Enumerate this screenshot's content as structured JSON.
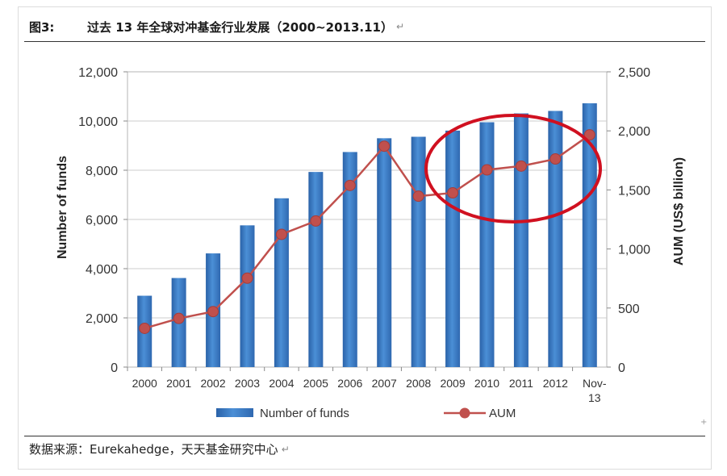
{
  "figure": {
    "label": "图3:",
    "title": "过去 13 年全球对冲基金行业发展（2000~2013.11）",
    "return_mark": "↵",
    "source": "数据来源：Eurekahedge，天天基金研究中心",
    "corner_mark": "+"
  },
  "chart_data": {
    "type": "bar",
    "categories": [
      "2000",
      "2001",
      "2002",
      "2003",
      "2004",
      "2005",
      "2006",
      "2007",
      "2008",
      "2009",
      "2010",
      "2011",
      "2012",
      "Nov-13"
    ],
    "series": [
      {
        "name": "Number of funds",
        "type": "bar",
        "axis": "left",
        "values": [
          2900,
          3620,
          4620,
          5760,
          6860,
          7930,
          8740,
          9300,
          9360,
          9610,
          9950,
          10310,
          10410,
          10720
        ]
      },
      {
        "name": "AUM",
        "type": "line",
        "axis": "right",
        "values": [
          328,
          412,
          470,
          753,
          1124,
          1237,
          1538,
          1870,
          1447,
          1475,
          1670,
          1702,
          1762,
          1966
        ]
      }
    ],
    "xlabel": "",
    "ylabel": "Number of funds",
    "y2label": "AUM (US$ billion)",
    "ylim": [
      0,
      12000
    ],
    "y2lim": [
      0,
      2500
    ],
    "yticks": [
      "0",
      "2,000",
      "4,000",
      "6,000",
      "8,000",
      "10,000",
      "12,000"
    ],
    "y2ticks": [
      "0",
      "500",
      "1,000",
      "1,500",
      "2,000",
      "2,500"
    ],
    "grid": true,
    "legend": "bottom",
    "highlight": "ellipse around 2009–Nov-13",
    "colors": {
      "bar": "#3a78c2",
      "line": "#c0504d",
      "highlight": "#d01020",
      "grid": "#cccccc"
    }
  }
}
